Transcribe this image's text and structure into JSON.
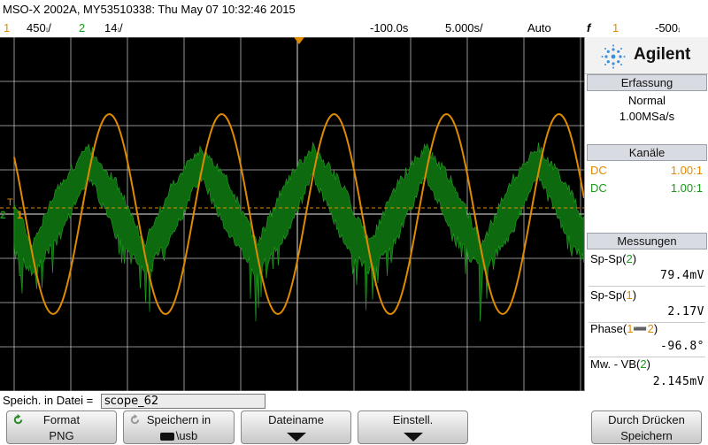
{
  "title": "MSO-X 2002A, MY53510338: Thu May 07 10:32:46 2015",
  "status": {
    "ch1_num": "1",
    "ch1_scale": "450⨾/",
    "ch2_num": "2",
    "ch2_scale": "14⨾/",
    "time_delay": "-100.0s",
    "time_scale": "5.000s/",
    "trigger_mode": "Auto",
    "trigger_symbol": "f",
    "trigger_source": "1",
    "trigger_level": "-500⨾"
  },
  "display": {
    "ch1_marker": "1",
    "ch2_marker": "2",
    "trigger_marker": "T"
  },
  "panel": {
    "logo_text": "Agilent",
    "acquisition": {
      "header": "Erfassung",
      "mode": "Normal",
      "rate": "1.00MSa/s"
    },
    "channels": {
      "header": "Kanäle",
      "items": [
        {
          "coupling": "DC",
          "probe": "1.00:1",
          "color": "#e08a00"
        },
        {
          "coupling": "DC",
          "probe": "1.00:1",
          "color": "#1a9a1a"
        }
      ]
    },
    "measurements": {
      "header": "Messungen",
      "items": [
        {
          "label_pre": "Sp-Sp(",
          "label_src": "2",
          "label_post": ")",
          "value": "79.4mV"
        },
        {
          "label_pre": "Sp-Sp(",
          "label_src": "1",
          "label_post": ")",
          "value": "2.17V"
        },
        {
          "label_pre": "Phase(",
          "label_src": "1➖2",
          "label_post": ")",
          "value": "-96.8°"
        },
        {
          "label_pre": "Mw. - VB(",
          "label_src": "2",
          "label_post": ")",
          "value": "2.145mV"
        }
      ]
    }
  },
  "save": {
    "label": "Speich. in Datei =",
    "filename": "scope_62"
  },
  "softkeys": [
    {
      "line1": "Format",
      "line2": "PNG"
    },
    {
      "line1": "Speichern in",
      "line2": "\\usb"
    },
    {
      "line1": "Dateiname",
      "line2": ""
    },
    {
      "line1": "Einstell.",
      "line2": ""
    },
    {
      "line1": "Durch Drücken",
      "line2": "Speichern"
    }
  ],
  "colors": {
    "ch1": "#e08a00",
    "ch2": "#1a9a1a",
    "grid": "#bcbcbc",
    "background": "#000000"
  }
}
